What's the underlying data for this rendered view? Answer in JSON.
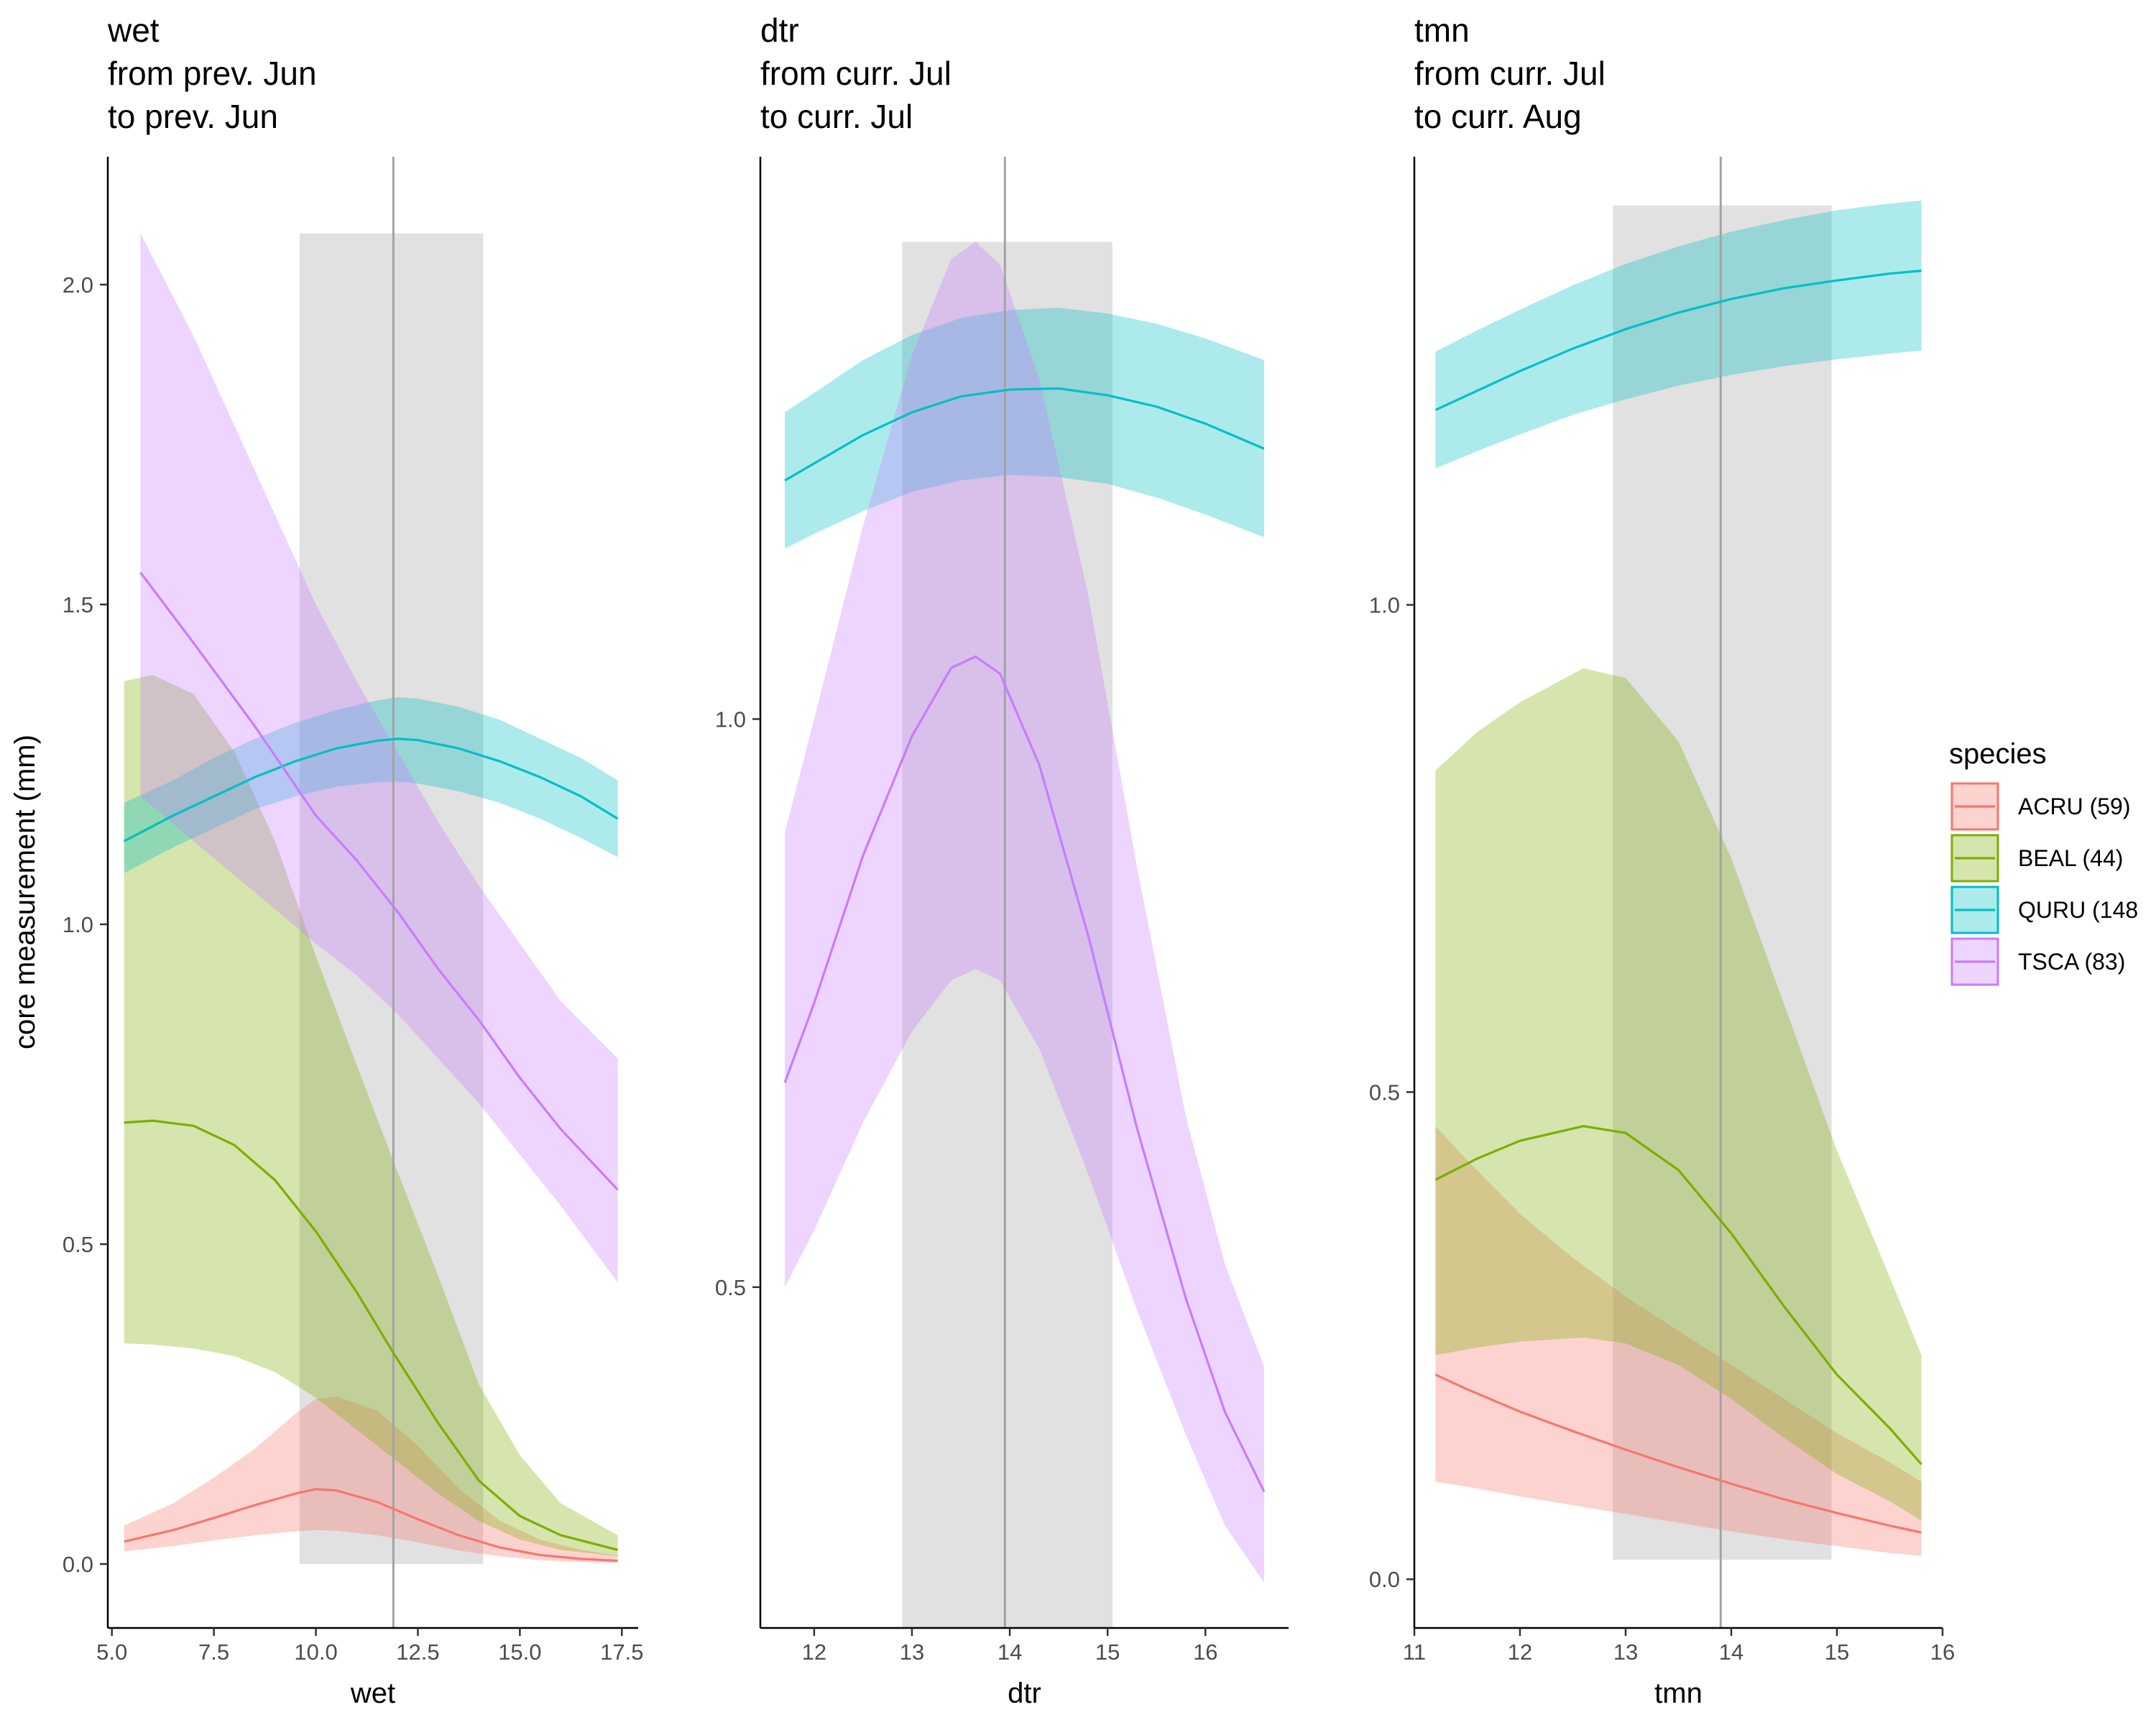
{
  "chart_data": {
    "type": "line",
    "ylabel": "core measurement (mm)",
    "legend": {
      "title": "species",
      "position": "right",
      "entries": [
        {
          "key": "ACRU",
          "label": "ACRU (59)",
          "color": "#F8766D"
        },
        {
          "key": "BEAL",
          "label": "BEAL (44)",
          "color": "#7CAE00"
        },
        {
          "key": "QURU",
          "label": "QURU (148",
          "color": "#00BFC4"
        },
        {
          "key": "TSCA",
          "label": "TSCA (83)",
          "color": "#C77CFF"
        }
      ]
    },
    "grid": false,
    "panels": [
      {
        "title": [
          "wet",
          "from prev. Jun",
          "to prev. Jun"
        ],
        "xlabel": "wet",
        "xlim": [
          4.9,
          17.9
        ],
        "ylim": [
          -0.1,
          2.2
        ],
        "xticks": [
          5.0,
          7.5,
          10.0,
          12.5,
          15.0,
          17.5
        ],
        "xtick_labels": [
          "5.0",
          "7.5",
          "10.0",
          "12.5",
          "15.0",
          "17.5"
        ],
        "yticks": [
          0.0,
          0.5,
          1.0,
          1.5,
          2.0
        ],
        "ytick_labels": [
          "0.0",
          "0.5",
          "1.0",
          "1.5",
          "2.0"
        ],
        "vline": 11.9,
        "shaded": {
          "x": [
            9.6,
            14.1
          ],
          "y": [
            0.0,
            2.08
          ]
        },
        "series": [
          {
            "key": "ACRU",
            "x": [
              5.3,
              6.5,
              7.5,
              8.5,
              9.5,
              10.0,
              10.5,
              11.5,
              12.5,
              13.5,
              14.5,
              15.5,
              16.5,
              17.4
            ],
            "y": [
              0.035,
              0.053,
              0.072,
              0.092,
              0.11,
              0.117,
              0.115,
              0.097,
              0.07,
              0.045,
              0.026,
              0.014,
              0.008,
              0.005
            ],
            "lo": [
              0.02,
              0.028,
              0.037,
              0.045,
              0.051,
              0.053,
              0.052,
              0.045,
              0.034,
              0.021,
              0.012,
              0.006,
              0.003,
              0.002
            ],
            "hi": [
              0.06,
              0.095,
              0.135,
              0.18,
              0.235,
              0.258,
              0.262,
              0.24,
              0.185,
              0.118,
              0.068,
              0.038,
              0.022,
              0.013
            ]
          },
          {
            "key": "BEAL",
            "x": [
              5.3,
              6.0,
              7.0,
              8.0,
              9.0,
              10.0,
              11.0,
              11.9,
              13.0,
              14.0,
              15.0,
              16.0,
              17.4
            ],
            "y": [
              0.69,
              0.693,
              0.685,
              0.655,
              0.6,
              0.52,
              0.425,
              0.33,
              0.22,
              0.13,
              0.075,
              0.045,
              0.022
            ],
            "lo": [
              0.345,
              0.343,
              0.337,
              0.325,
              0.3,
              0.26,
              0.21,
              0.165,
              0.11,
              0.067,
              0.038,
              0.022,
              0.012
            ],
            "hi": [
              1.38,
              1.39,
              1.36,
              1.27,
              1.13,
              0.95,
              0.78,
              0.63,
              0.45,
              0.28,
              0.17,
              0.095,
              0.045
            ]
          },
          {
            "key": "QURU",
            "x": [
              5.3,
              6.5,
              7.5,
              8.5,
              9.5,
              10.5,
              11.5,
              12.0,
              12.5,
              13.5,
              14.5,
              15.5,
              16.5,
              17.4
            ],
            "y": [
              1.13,
              1.17,
              1.2,
              1.23,
              1.255,
              1.275,
              1.287,
              1.29,
              1.288,
              1.275,
              1.255,
              1.23,
              1.2,
              1.165
            ],
            "lo": [
              1.08,
              1.12,
              1.15,
              1.18,
              1.2,
              1.215,
              1.222,
              1.223,
              1.22,
              1.208,
              1.19,
              1.165,
              1.135,
              1.105
            ],
            "hi": [
              1.19,
              1.225,
              1.26,
              1.29,
              1.315,
              1.335,
              1.35,
              1.355,
              1.353,
              1.34,
              1.32,
              1.29,
              1.26,
              1.225
            ]
          },
          {
            "key": "TSCA",
            "x": [
              5.7,
              7.0,
              8.5,
              10.0,
              11.0,
              12.0,
              13.0,
              14.0,
              15.0,
              16.0,
              17.4
            ],
            "y": [
              1.55,
              1.44,
              1.31,
              1.17,
              1.1,
              1.02,
              0.93,
              0.85,
              0.76,
              0.68,
              0.585
            ],
            "lo": [
              1.2,
              1.13,
              1.05,
              0.97,
              0.92,
              0.86,
              0.79,
              0.72,
              0.64,
              0.56,
              0.44
            ],
            "hi": [
              2.08,
              1.92,
              1.71,
              1.5,
              1.38,
              1.27,
              1.16,
              1.06,
              0.97,
              0.88,
              0.79
            ]
          }
        ]
      },
      {
        "title": [
          "dtr",
          "from curr. Jul",
          "to curr. Jul"
        ],
        "xlabel": "dtr",
        "xlim": [
          11.45,
          16.85
        ],
        "ylim": [
          0.2,
          1.495
        ],
        "xticks": [
          12,
          13,
          14,
          15,
          16
        ],
        "xtick_labels": [
          "12",
          "13",
          "14",
          "15",
          "16"
        ],
        "yticks": [
          0.5,
          1.0
        ],
        "ytick_labels": [
          "0.5",
          "1.0"
        ],
        "vline": 13.95,
        "shaded": {
          "x": [
            12.9,
            15.05
          ],
          "y": [
            0.2,
            1.42
          ]
        },
        "series": [
          {
            "key": "QURU",
            "x": [
              11.7,
              12.0,
              12.5,
              13.0,
              13.5,
              14.0,
              14.5,
              15.0,
              15.5,
              16.0,
              16.6
            ],
            "y": [
              1.21,
              1.225,
              1.25,
              1.27,
              1.284,
              1.29,
              1.291,
              1.285,
              1.275,
              1.26,
              1.238
            ],
            "lo": [
              1.15,
              1.163,
              1.183,
              1.2,
              1.21,
              1.215,
              1.213,
              1.207,
              1.195,
              1.18,
              1.16
            ],
            "hi": [
              1.27,
              1.287,
              1.316,
              1.338,
              1.353,
              1.36,
              1.362,
              1.357,
              1.348,
              1.335,
              1.316
            ]
          },
          {
            "key": "TSCA",
            "x": [
              11.7,
              12.0,
              12.5,
              13.0,
              13.4,
              13.65,
              13.9,
              14.3,
              14.8,
              15.3,
              15.8,
              16.2,
              16.6
            ],
            "y": [
              0.68,
              0.75,
              0.88,
              0.985,
              1.045,
              1.055,
              1.04,
              0.96,
              0.81,
              0.64,
              0.49,
              0.39,
              0.32
            ],
            "lo": [
              0.5,
              0.55,
              0.645,
              0.725,
              0.77,
              0.78,
              0.77,
              0.71,
              0.6,
              0.48,
              0.37,
              0.29,
              0.24
            ],
            "hi": [
              0.9,
              1.0,
              1.17,
              1.32,
              1.405,
              1.42,
              1.4,
              1.3,
              1.11,
              0.87,
              0.65,
              0.52,
              0.43
            ]
          }
        ]
      },
      {
        "title": [
          "tmn",
          "from curr. Jul",
          "to curr. Aug"
        ],
        "xlabel": "tmn",
        "xlim": [
          11.0,
          16.0
        ],
        "ylim": [
          -0.05,
          1.46
        ],
        "xticks": [
          11,
          12,
          13,
          14,
          15,
          16
        ],
        "xtick_labels": [
          "11",
          "12",
          "13",
          "14",
          "15",
          "16"
        ],
        "yticks": [
          0.0,
          0.5,
          1.0
        ],
        "ytick_labels": [
          "0.0",
          "0.5",
          "1.0"
        ],
        "vline": 13.9,
        "shaded": {
          "x": [
            12.88,
            14.95
          ],
          "y": [
            0.02,
            1.41
          ]
        },
        "series": [
          {
            "key": "ACRU",
            "x": [
              11.2,
              11.5,
              12.0,
              12.5,
              13.0,
              13.5,
              14.0,
              14.5,
              15.0,
              15.5,
              15.8
            ],
            "y": [
              0.21,
              0.195,
              0.172,
              0.152,
              0.133,
              0.115,
              0.098,
              0.082,
              0.068,
              0.055,
              0.048
            ],
            "lo": [
              0.1,
              0.095,
              0.085,
              0.076,
              0.067,
              0.058,
              0.049,
              0.041,
              0.034,
              0.027,
              0.024
            ],
            "hi": [
              0.465,
              0.43,
              0.375,
              0.33,
              0.29,
              0.255,
              0.22,
              0.185,
              0.15,
              0.12,
              0.1
            ]
          },
          {
            "key": "BEAL",
            "x": [
              11.2,
              11.6,
              12.0,
              12.6,
              13.0,
              13.5,
              14.0,
              14.5,
              15.0,
              15.5,
              15.8
            ],
            "y": [
              0.41,
              0.432,
              0.45,
              0.465,
              0.458,
              0.42,
              0.355,
              0.28,
              0.21,
              0.155,
              0.118
            ],
            "lo": [
              0.23,
              0.238,
              0.244,
              0.248,
              0.242,
              0.22,
              0.185,
              0.145,
              0.108,
              0.08,
              0.06
            ],
            "hi": [
              0.83,
              0.87,
              0.9,
              0.935,
              0.925,
              0.86,
              0.74,
              0.59,
              0.44,
              0.31,
              0.23
            ]
          },
          {
            "key": "QURU",
            "x": [
              11.2,
              11.6,
              12.0,
              12.5,
              13.0,
              13.5,
              14.0,
              14.5,
              15.0,
              15.5,
              15.8
            ],
            "y": [
              1.2,
              1.22,
              1.24,
              1.263,
              1.283,
              1.3,
              1.314,
              1.325,
              1.333,
              1.34,
              1.343
            ],
            "lo": [
              1.14,
              1.158,
              1.175,
              1.195,
              1.211,
              1.225,
              1.236,
              1.245,
              1.252,
              1.258,
              1.261
            ],
            "hi": [
              1.26,
              1.282,
              1.303,
              1.328,
              1.35,
              1.368,
              1.383,
              1.395,
              1.405,
              1.412,
              1.415
            ]
          }
        ]
      }
    ]
  }
}
